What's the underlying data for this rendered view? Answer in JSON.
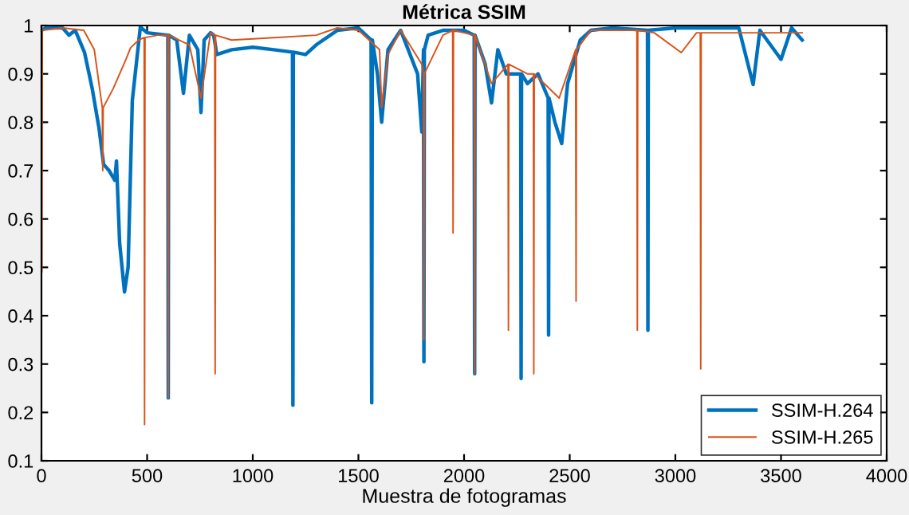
{
  "chart_data": {
    "type": "line",
    "title": "Métrica SSIM",
    "xlabel": "Muestra de fotogramas",
    "xlim": [
      0,
      4000
    ],
    "xticks": [
      0,
      500,
      1000,
      1500,
      2000,
      2500,
      3000,
      3500,
      4000
    ],
    "ylim": [
      0.1,
      1
    ],
    "yticks": [
      0.1,
      0.2,
      0.3,
      0.4,
      0.5,
      0.6,
      0.7,
      0.8,
      0.9,
      1
    ],
    "grid": false,
    "legend": "bottom right",
    "marker": "none",
    "line_style": "solid",
    "series": [
      {
        "name": "SSIM-H.264",
        "color": "#0072bd",
        "x": [
          0,
          20,
          100,
          130,
          160,
          204,
          240,
          272,
          294,
          320,
          347,
          355,
          370,
          393,
          410,
          430,
          468,
          500,
          598,
          600,
          602,
          640,
          672,
          700,
          740,
          755,
          770,
          800,
          815,
          830,
          900,
          1000,
          1100,
          1188,
          1190,
          1192,
          1250,
          1300,
          1400,
          1500,
          1560,
          1563,
          1566,
          1590,
          1610,
          1640,
          1700,
          1780,
          1800,
          1808,
          1810,
          1812,
          1830,
          1900,
          2000,
          2048,
          2050,
          2052,
          2100,
          2130,
          2160,
          2200,
          2268,
          2270,
          2272,
          2300,
          2350,
          2398,
          2400,
          2402,
          2430,
          2462,
          2490,
          2550,
          2600,
          2700,
          2868,
          2870,
          2872,
          3000,
          3300,
          3368,
          3400,
          3500,
          3550,
          3600
        ],
        "values": [
          0.99,
          0.995,
          0.995,
          0.98,
          0.99,
          0.944,
          0.87,
          0.789,
          0.713,
          0.7,
          0.68,
          0.72,
          0.55,
          0.449,
          0.5,
          0.845,
          0.997,
          0.985,
          0.98,
          0.23,
          0.98,
          0.97,
          0.86,
          0.98,
          0.95,
          0.82,
          0.97,
          0.985,
          0.98,
          0.94,
          0.95,
          0.955,
          0.95,
          0.945,
          0.215,
          0.945,
          0.94,
          0.96,
          0.99,
          0.995,
          0.97,
          0.22,
          0.97,
          0.9,
          0.8,
          0.95,
          0.99,
          0.9,
          0.78,
          0.95,
          0.305,
          0.95,
          0.98,
          0.99,
          0.99,
          0.98,
          0.28,
          0.98,
          0.92,
          0.84,
          0.95,
          0.9,
          0.9,
          0.27,
          0.9,
          0.88,
          0.9,
          0.85,
          0.36,
          0.85,
          0.8,
          0.756,
          0.88,
          0.97,
          0.99,
          0.995,
          0.99,
          0.37,
          0.99,
          0.995,
          0.995,
          0.878,
          0.99,
          0.93,
          0.995,
          0.97
        ]
      },
      {
        "name": "SSIM-H.265",
        "color": "#d95319",
        "x": [
          0,
          2,
          4,
          100,
          200,
          250,
          288,
          290,
          292,
          340,
          400,
          422,
          460,
          486,
          488,
          490,
          550,
          598,
          600,
          602,
          700,
          755,
          800,
          820,
          822,
          824,
          900,
          1100,
          1300,
          1400,
          1500,
          1600,
          1610,
          1640,
          1700,
          1800,
          1808,
          1810,
          1812,
          1900,
          1946,
          1948,
          1950,
          2048,
          2050,
          2052,
          2130,
          2208,
          2210,
          2212,
          2300,
          2328,
          2330,
          2332,
          2450,
          2528,
          2530,
          2532,
          2600,
          2818,
          2820,
          2822,
          2900,
          3028,
          3100,
          3118,
          3120,
          3122,
          3300,
          3600
        ],
        "values": [
          0.99,
          0.49,
          0.99,
          0.995,
          0.99,
          0.95,
          0.83,
          0.7,
          0.83,
          0.87,
          0.93,
          0.954,
          0.97,
          0.975,
          0.175,
          0.975,
          0.98,
          0.98,
          0.23,
          0.98,
          0.96,
          0.85,
          0.985,
          0.98,
          0.28,
          0.98,
          0.97,
          0.975,
          0.98,
          0.995,
          0.99,
          0.95,
          0.83,
          0.94,
          0.99,
          0.92,
          0.9,
          0.35,
          0.9,
          0.98,
          0.99,
          0.571,
          0.99,
          0.98,
          0.28,
          0.98,
          0.88,
          0.92,
          0.37,
          0.92,
          0.9,
          0.9,
          0.28,
          0.9,
          0.85,
          0.95,
          0.43,
          0.95,
          0.99,
          0.99,
          0.37,
          0.99,
          0.985,
          0.944,
          0.985,
          0.985,
          0.29,
          0.985,
          0.985,
          0.985
        ]
      }
    ]
  }
}
